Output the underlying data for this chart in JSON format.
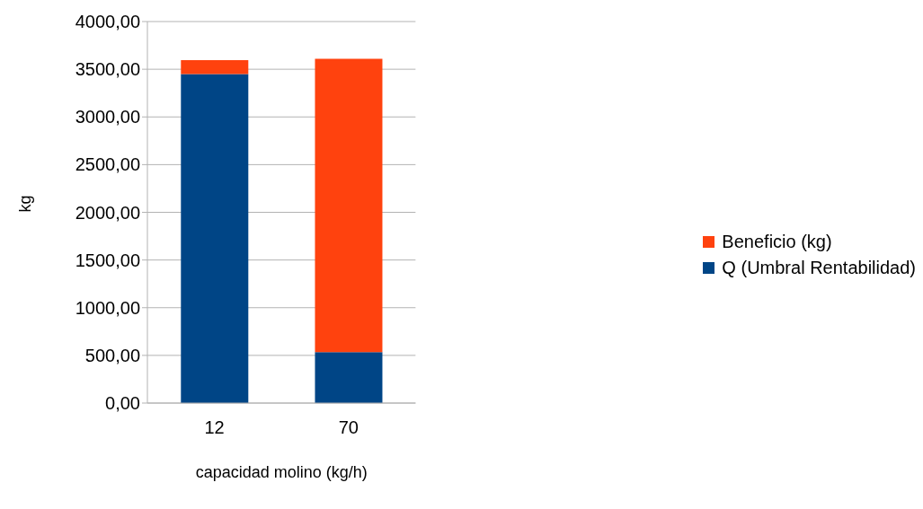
{
  "chart_data": {
    "type": "bar",
    "stacked": true,
    "xlabel": "capacidad molino (kg/h)",
    "ylabel": "kg",
    "categories": [
      "12",
      "70"
    ],
    "series": [
      {
        "name": "Q (Umbral Rentabilidad)",
        "color": "#004586",
        "values": [
          3450,
          535
        ]
      },
      {
        "name": "Beneficio (kg)",
        "color": "#ff420e",
        "values": [
          145,
          3075
        ]
      }
    ],
    "ylim": [
      0,
      4000
    ],
    "yticks": [
      {
        "value": 0,
        "label": "0,00"
      },
      {
        "value": 500,
        "label": "500,00"
      },
      {
        "value": 1000,
        "label": "1000,00"
      },
      {
        "value": 1500,
        "label": "1500,00"
      },
      {
        "value": 2000,
        "label": "2000,00"
      },
      {
        "value": 2500,
        "label": "2500,00"
      },
      {
        "value": 3000,
        "label": "3000,00"
      },
      {
        "value": 3500,
        "label": "3500,00"
      },
      {
        "value": 4000,
        "label": "4000,00"
      }
    ],
    "grid": "y",
    "legend": "right"
  }
}
